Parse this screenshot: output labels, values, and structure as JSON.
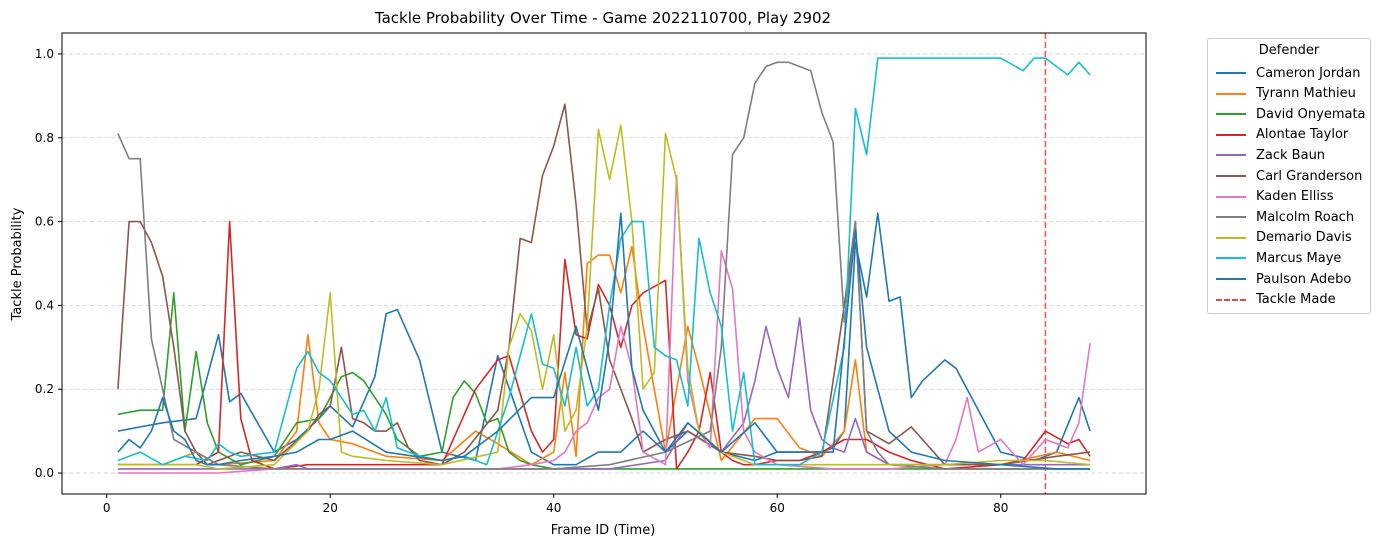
{
  "chart_data": {
    "type": "line",
    "title": "Tackle Probability Over Time - Game 2022110700, Play 2902",
    "xlabel": "Frame ID (Time)",
    "ylabel": "Tackle Probability",
    "xlim": [
      -4,
      93
    ],
    "ylim": [
      -0.05,
      1.05
    ],
    "xticks": [
      0,
      20,
      40,
      60,
      80
    ],
    "yticks": [
      0.0,
      0.2,
      0.4,
      0.6,
      0.8,
      1.0
    ],
    "grid": "y-dashed",
    "legend": {
      "title": "Defender",
      "placement": "outside-right"
    },
    "tackle_frame": 84,
    "tackle_label": "Tackle Made",
    "tackle_color": "#e84a4a",
    "series": [
      {
        "name": "Cameron Jordan",
        "color": "#1f77b4",
        "x": [
          1,
          3,
          5,
          8,
          10,
          11,
          12,
          15,
          17,
          19,
          20,
          22,
          24,
          25,
          26,
          28,
          30,
          33,
          35,
          38,
          40,
          42,
          44,
          46,
          48,
          50,
          52,
          55,
          58,
          60,
          62,
          64,
          65,
          66,
          67,
          68,
          69,
          70,
          71,
          72,
          73,
          75,
          76,
          80,
          83,
          85,
          87,
          88
        ],
        "y": [
          0.1,
          0.11,
          0.12,
          0.13,
          0.33,
          0.17,
          0.19,
          0.05,
          0.08,
          0.13,
          0.16,
          0.11,
          0.23,
          0.38,
          0.39,
          0.27,
          0.05,
          0.03,
          0.28,
          0.05,
          0.02,
          0.02,
          0.05,
          0.05,
          0.1,
          0.05,
          0.1,
          0.05,
          0.03,
          0.05,
          0.05,
          0.05,
          0.06,
          0.1,
          0.55,
          0.42,
          0.62,
          0.41,
          0.42,
          0.18,
          0.22,
          0.27,
          0.25,
          0.05,
          0.03,
          0.05,
          0.18,
          0.1
        ]
      },
      {
        "name": "Tyrann Mathieu",
        "color": "#ff7f0e",
        "x": [
          1,
          5,
          8,
          10,
          15,
          17,
          18,
          19,
          20,
          22,
          25,
          30,
          33,
          35,
          38,
          40,
          41,
          42,
          43,
          44,
          45,
          46,
          47,
          48,
          50,
          52,
          53,
          55,
          58,
          60,
          62,
          64,
          66,
          67,
          68,
          70,
          75,
          80,
          85,
          88
        ],
        "y": [
          0.02,
          0.02,
          0.05,
          0.02,
          0.03,
          0.1,
          0.33,
          0.12,
          0.08,
          0.07,
          0.04,
          0.03,
          0.1,
          0.07,
          0.02,
          0.05,
          0.24,
          0.04,
          0.5,
          0.52,
          0.52,
          0.43,
          0.54,
          0.35,
          0.05,
          0.35,
          0.25,
          0.03,
          0.13,
          0.13,
          0.06,
          0.04,
          0.1,
          0.27,
          0.05,
          0.02,
          0.02,
          0.02,
          0.05,
          0.03
        ]
      },
      {
        "name": "David Onyemata",
        "color": "#2ca02c",
        "x": [
          1,
          3,
          5,
          6,
          7,
          8,
          9,
          10,
          12,
          15,
          17,
          19,
          21,
          22,
          23,
          24,
          25,
          26,
          28,
          30,
          31,
          32,
          33,
          34,
          35,
          36,
          37,
          38,
          40,
          45,
          50,
          55,
          60,
          65,
          70,
          75,
          80,
          88
        ],
        "y": [
          0.14,
          0.15,
          0.15,
          0.43,
          0.1,
          0.29,
          0.12,
          0.05,
          0.02,
          0.04,
          0.12,
          0.13,
          0.23,
          0.24,
          0.22,
          0.18,
          0.14,
          0.08,
          0.04,
          0.05,
          0.18,
          0.22,
          0.19,
          0.12,
          0.13,
          0.05,
          0.03,
          0.02,
          0.01,
          0.01,
          0.01,
          0.01,
          0.01,
          0.01,
          0.01,
          0.01,
          0.01,
          0.01
        ]
      },
      {
        "name": "Alontae Taylor",
        "color": "#d62728",
        "x": [
          1,
          5,
          8,
          10,
          11,
          12,
          13,
          15,
          18,
          20,
          22,
          25,
          30,
          33,
          35,
          36,
          38,
          39,
          40,
          41,
          42,
          43,
          44,
          45,
          46,
          47,
          48,
          50,
          51,
          52,
          53,
          54,
          55,
          56,
          57,
          58,
          60,
          62,
          64,
          66,
          68,
          70,
          72,
          75,
          80,
          82,
          84,
          86,
          87,
          88
        ],
        "y": [
          0.02,
          0.02,
          0.02,
          0.05,
          0.6,
          0.13,
          0.03,
          0.01,
          0.02,
          0.02,
          0.02,
          0.02,
          0.02,
          0.2,
          0.27,
          0.28,
          0.1,
          0.05,
          0.08,
          0.51,
          0.33,
          0.32,
          0.45,
          0.4,
          0.3,
          0.4,
          0.43,
          0.46,
          0.01,
          0.05,
          0.1,
          0.24,
          0.05,
          0.03,
          0.02,
          0.02,
          0.03,
          0.03,
          0.05,
          0.08,
          0.08,
          0.05,
          0.03,
          0.01,
          0.02,
          0.03,
          0.1,
          0.07,
          0.08,
          0.04
        ]
      },
      {
        "name": "Zack Baun",
        "color": "#9467bd",
        "x": [
          1,
          5,
          8,
          10,
          12,
          15,
          17,
          18,
          20,
          22,
          25,
          30,
          35,
          40,
          45,
          50,
          52,
          55,
          57,
          58,
          59,
          60,
          61,
          62,
          63,
          64,
          65,
          66,
          67,
          68,
          70,
          72,
          75,
          80,
          85,
          88
        ],
        "y": [
          0.01,
          0.01,
          0.01,
          0.01,
          0.01,
          0.01,
          0.02,
          0.01,
          0.01,
          0.01,
          0.01,
          0.01,
          0.01,
          0.01,
          0.01,
          0.03,
          0.12,
          0.05,
          0.12,
          0.22,
          0.35,
          0.25,
          0.18,
          0.37,
          0.15,
          0.08,
          0.06,
          0.05,
          0.13,
          0.05,
          0.02,
          0.02,
          0.02,
          0.02,
          0.02,
          0.02
        ]
      },
      {
        "name": "Carl Granderson",
        "color": "#8c564b",
        "x": [
          1,
          2,
          3,
          4,
          5,
          6,
          7,
          8,
          9,
          10,
          12,
          15,
          18,
          19,
          20,
          21,
          22,
          23,
          24,
          25,
          26,
          27,
          28,
          30,
          32,
          35,
          36,
          37,
          38,
          39,
          40,
          41,
          42,
          43,
          44,
          45,
          46,
          47,
          48,
          50,
          52,
          55,
          58,
          60,
          62,
          64,
          66,
          67,
          68,
          70,
          72,
          75,
          80,
          85,
          88
        ],
        "y": [
          0.2,
          0.6,
          0.6,
          0.55,
          0.47,
          0.3,
          0.1,
          0.05,
          0.02,
          0.03,
          0.05,
          0.03,
          0.1,
          0.14,
          0.16,
          0.3,
          0.13,
          0.12,
          0.1,
          0.1,
          0.12,
          0.06,
          0.03,
          0.02,
          0.05,
          0.15,
          0.3,
          0.56,
          0.55,
          0.71,
          0.78,
          0.88,
          0.64,
          0.34,
          0.44,
          0.27,
          0.2,
          0.13,
          0.05,
          0.08,
          0.1,
          0.05,
          0.04,
          0.03,
          0.03,
          0.04,
          0.4,
          0.6,
          0.1,
          0.07,
          0.11,
          0.02,
          0.02,
          0.04,
          0.05
        ]
      },
      {
        "name": "Kaden Elliss",
        "color": "#e377c2",
        "x": [
          1,
          5,
          10,
          15,
          20,
          25,
          30,
          35,
          38,
          40,
          41,
          42,
          43,
          44,
          45,
          46,
          47,
          48,
          50,
          51,
          52,
          53,
          54,
          55,
          56,
          57,
          58,
          60,
          65,
          70,
          75,
          76,
          77,
          78,
          80,
          82,
          84,
          86,
          87,
          88
        ],
        "y": [
          0.0,
          0.0,
          0.0,
          0.01,
          0.01,
          0.01,
          0.01,
          0.01,
          0.02,
          0.03,
          0.05,
          0.1,
          0.12,
          0.18,
          0.2,
          0.35,
          0.25,
          0.05,
          0.02,
          0.71,
          0.22,
          0.1,
          0.06,
          0.53,
          0.44,
          0.1,
          0.05,
          0.02,
          0.01,
          0.01,
          0.02,
          0.08,
          0.18,
          0.05,
          0.08,
          0.02,
          0.08,
          0.06,
          0.12,
          0.31
        ]
      },
      {
        "name": "Malcolm Roach",
        "color": "#7f7f7f",
        "x": [
          1,
          2,
          3,
          4,
          5,
          6,
          8,
          10,
          15,
          20,
          25,
          30,
          35,
          40,
          45,
          50,
          54,
          55,
          56,
          57,
          58,
          59,
          60,
          61,
          62,
          63,
          64,
          65,
          66,
          67,
          68,
          69,
          70,
          75,
          80,
          85,
          88
        ],
        "y": [
          0.81,
          0.75,
          0.75,
          0.32,
          0.2,
          0.08,
          0.05,
          0.02,
          0.01,
          0.01,
          0.01,
          0.01,
          0.01,
          0.01,
          0.02,
          0.05,
          0.1,
          0.3,
          0.76,
          0.8,
          0.93,
          0.97,
          0.98,
          0.98,
          0.97,
          0.96,
          0.86,
          0.79,
          0.36,
          0.6,
          0.1,
          0.05,
          0.02,
          0.01,
          0.01,
          0.01,
          0.01
        ]
      },
      {
        "name": "Demario Davis",
        "color": "#bcbd22",
        "x": [
          1,
          5,
          8,
          10,
          15,
          18,
          19,
          20,
          21,
          22,
          25,
          30,
          35,
          36,
          37,
          38,
          39,
          40,
          41,
          42,
          43,
          44,
          45,
          46,
          47,
          48,
          49,
          50,
          51,
          52,
          53,
          55,
          58,
          60,
          65,
          70,
          75,
          80,
          84,
          88
        ],
        "y": [
          0.02,
          0.02,
          0.02,
          0.01,
          0.02,
          0.1,
          0.2,
          0.43,
          0.05,
          0.04,
          0.03,
          0.02,
          0.05,
          0.3,
          0.38,
          0.34,
          0.2,
          0.33,
          0.1,
          0.15,
          0.35,
          0.82,
          0.7,
          0.83,
          0.6,
          0.2,
          0.24,
          0.81,
          0.7,
          0.25,
          0.1,
          0.05,
          0.02,
          0.02,
          0.02,
          0.02,
          0.02,
          0.03,
          0.03,
          0.02
        ]
      },
      {
        "name": "Marcus Maye",
        "color": "#17becf",
        "x": [
          1,
          3,
          5,
          7,
          9,
          10,
          11,
          12,
          15,
          17,
          18,
          19,
          20,
          21,
          22,
          23,
          24,
          25,
          26,
          28,
          30,
          32,
          34,
          36,
          38,
          39,
          40,
          41,
          42,
          43,
          44,
          45,
          46,
          47,
          48,
          49,
          50,
          51,
          52,
          53,
          54,
          55,
          56,
          57,
          58,
          60,
          62,
          64,
          66,
          67,
          68,
          69,
          70,
          72,
          74,
          76,
          78,
          80,
          82,
          83,
          84,
          85,
          86,
          87,
          88
        ],
        "y": [
          0.03,
          0.05,
          0.02,
          0.04,
          0.03,
          0.07,
          0.05,
          0.04,
          0.05,
          0.25,
          0.29,
          0.24,
          0.22,
          0.18,
          0.14,
          0.15,
          0.1,
          0.18,
          0.06,
          0.04,
          0.03,
          0.04,
          0.02,
          0.18,
          0.38,
          0.26,
          0.25,
          0.16,
          0.3,
          0.16,
          0.2,
          0.4,
          0.56,
          0.6,
          0.6,
          0.3,
          0.28,
          0.27,
          0.16,
          0.56,
          0.43,
          0.35,
          0.1,
          0.24,
          0.02,
          0.02,
          0.02,
          0.05,
          0.3,
          0.87,
          0.76,
          0.99,
          0.99,
          0.99,
          0.99,
          0.99,
          0.99,
          0.99,
          0.96,
          0.99,
          0.99,
          0.97,
          0.95,
          0.98,
          0.95
        ]
      },
      {
        "name": "Paulson Adebo",
        "color": "#1f77b4",
        "x": [
          1,
          2,
          3,
          4,
          5,
          6,
          7,
          8,
          9,
          10,
          12,
          15,
          17,
          19,
          20,
          22,
          25,
          30,
          32,
          35,
          38,
          40,
          42,
          43,
          44,
          45,
          46,
          47,
          48,
          50,
          52,
          55,
          58,
          60,
          62,
          65,
          67,
          68,
          70,
          72,
          75,
          80,
          85,
          88
        ],
        "y": [
          0.05,
          0.08,
          0.06,
          0.1,
          0.18,
          0.1,
          0.08,
          0.03,
          0.02,
          0.02,
          0.03,
          0.04,
          0.05,
          0.08,
          0.08,
          0.1,
          0.05,
          0.03,
          0.04,
          0.1,
          0.18,
          0.18,
          0.35,
          0.25,
          0.15,
          0.32,
          0.62,
          0.25,
          0.15,
          0.05,
          0.12,
          0.05,
          0.12,
          0.05,
          0.05,
          0.05,
          0.58,
          0.3,
          0.1,
          0.05,
          0.03,
          0.02,
          0.01,
          0.01
        ]
      }
    ]
  }
}
